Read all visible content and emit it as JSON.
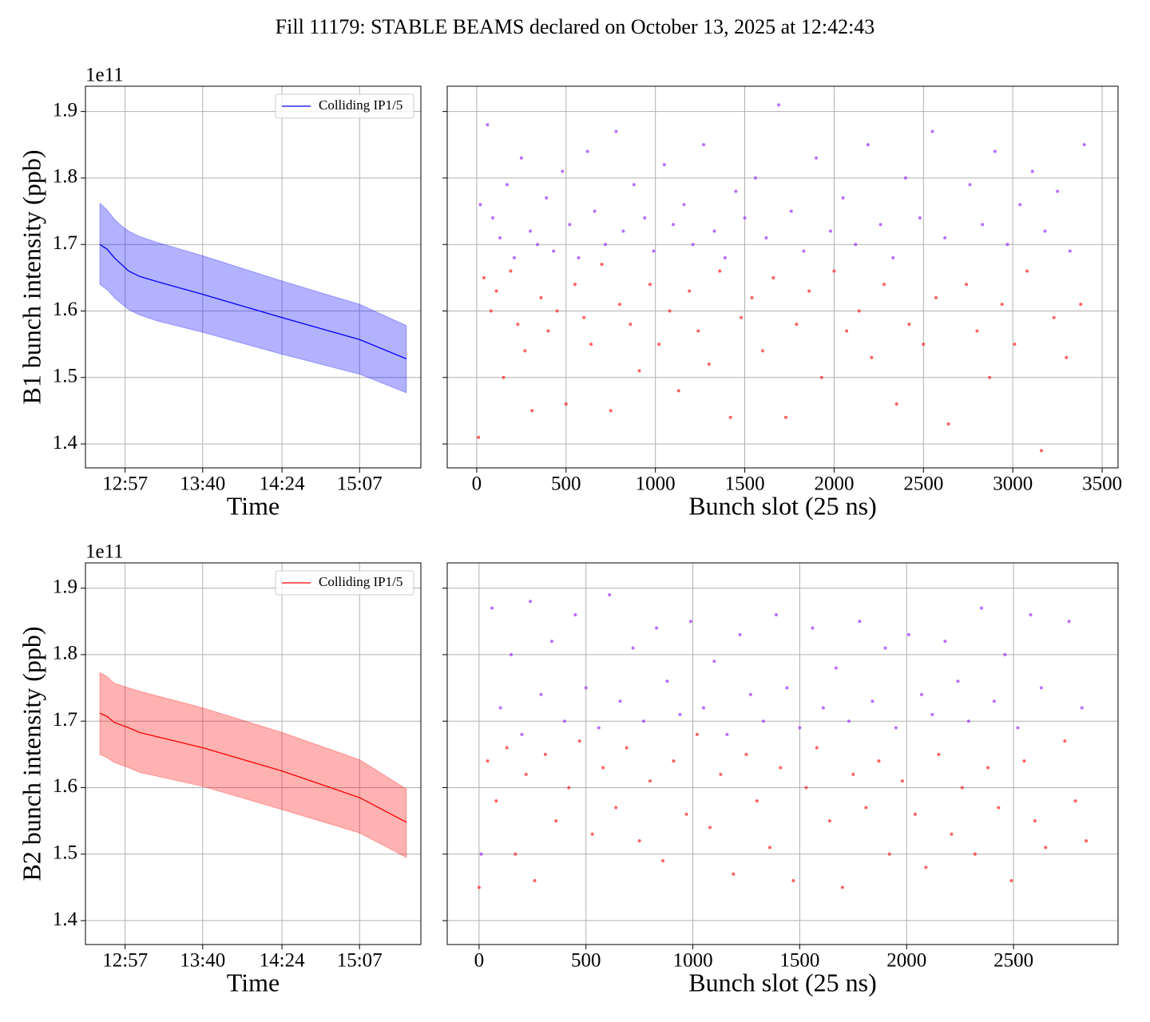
{
  "suptitle": "Fill 11179: STABLE BEAMS declared on October 13, 2025 at 12:42:43",
  "chart_data": [
    {
      "type": "line",
      "xlabel": "Time",
      "ylabel": "B1 bunch intensity (ppb)",
      "offset_label": "1e11",
      "x": [
        "12:43",
        "12:47",
        "12:51",
        "12:55",
        "12:59",
        "13:05",
        "13:15",
        "13:40",
        "14:24",
        "15:07",
        "15:33"
      ],
      "series": [
        {
          "name": "Colliding IP1/5",
          "color": "#0000ff",
          "values": [
            1.7,
            1.693,
            1.68,
            1.67,
            1.66,
            1.652,
            1.644,
            1.625,
            1.59,
            1.557,
            1.528
          ],
          "lower": [
            1.64,
            1.632,
            1.62,
            1.611,
            1.602,
            1.594,
            1.585,
            1.568,
            1.535,
            1.505,
            1.477
          ],
          "upper": [
            1.762,
            1.752,
            1.738,
            1.728,
            1.72,
            1.712,
            1.703,
            1.683,
            1.645,
            1.61,
            1.578
          ]
        }
      ],
      "xlim": [
        "12:35",
        "15:41"
      ],
      "xticks": [
        "12:57",
        "13:40",
        "14:24",
        "15:07"
      ],
      "ylim": [
        1.364,
        1.938
      ],
      "yticks": [
        1.4,
        1.5,
        1.6,
        1.7,
        1.8,
        1.9
      ],
      "grid": true,
      "legend": "upper right"
    },
    {
      "type": "scatter",
      "xlabel": "Bunch slot (25 ns)",
      "series": [
        {
          "color": "#9b30ff",
          "x": [
            20,
            60,
            90,
            130,
            170,
            210,
            250,
            300,
            340,
            390,
            430,
            480,
            520,
            570,
            620,
            660,
            720,
            780,
            820,
            880,
            940,
            990,
            1050,
            1100,
            1160,
            1210,
            1270,
            1330,
            1390,
            1450,
            1500,
            1560,
            1620,
            1690,
            1760,
            1830,
            1900,
            1980,
            2050,
            2120,
            2190,
            2260,
            2330,
            2400,
            2480,
            2550,
            2620,
            2760,
            2830,
            2900,
            2970,
            3040,
            3110,
            3180,
            3250,
            3320,
            3400
          ],
          "values": [
            1.76,
            1.88,
            1.74,
            1.71,
            1.79,
            1.68,
            1.83,
            1.72,
            1.7,
            1.77,
            1.69,
            1.81,
            1.73,
            1.68,
            1.84,
            1.75,
            1.7,
            1.87,
            1.72,
            1.79,
            1.74,
            1.69,
            1.82,
            1.73,
            1.76,
            1.7,
            1.85,
            1.72,
            1.68,
            1.78,
            1.74,
            1.8,
            1.71,
            1.91,
            1.75,
            1.69,
            1.83,
            1.72,
            1.77,
            1.7,
            1.85,
            1.73,
            1.68,
            1.8,
            1.74,
            1.87,
            1.71,
            1.79,
            1.73,
            1.84,
            1.7,
            1.76,
            1.81,
            1.72,
            1.78,
            1.69,
            1.85
          ]
        },
        {
          "color": "#ff2020",
          "x": [
            10,
            40,
            80,
            110,
            150,
            190,
            230,
            270,
            310,
            360,
            400,
            450,
            500,
            550,
            600,
            640,
            700,
            750,
            800,
            860,
            910,
            970,
            1020,
            1080,
            1130,
            1190,
            1240,
            1300,
            1360,
            1420,
            1480,
            1540,
            1600,
            1660,
            1730,
            1790,
            1860,
            1930,
            2000,
            2070,
            2140,
            2210,
            2280,
            2350,
            2420,
            2500,
            2570,
            2640,
            2740,
            2800,
            2870,
            2940,
            3010,
            3080,
            3160,
            3230,
            3300,
            3380
          ],
          "values": [
            1.41,
            1.65,
            1.6,
            1.63,
            1.5,
            1.66,
            1.58,
            1.54,
            1.45,
            1.62,
            1.57,
            1.6,
            1.46,
            1.64,
            1.59,
            1.55,
            1.67,
            1.45,
            1.61,
            1.58,
            1.51,
            1.64,
            1.55,
            1.6,
            1.48,
            1.63,
            1.57,
            1.52,
            1.66,
            1.44,
            1.59,
            1.62,
            1.54,
            1.65,
            1.44,
            1.58,
            1.63,
            1.5,
            1.66,
            1.57,
            1.6,
            1.53,
            1.64,
            1.46,
            1.58,
            1.55,
            1.62,
            1.43,
            1.64,
            1.57,
            1.5,
            1.61,
            1.55,
            1.66,
            1.39,
            1.59,
            1.53,
            1.61
          ]
        }
      ],
      "xlim": [
        -165,
        3589
      ],
      "xticks": [
        0,
        500,
        1000,
        1500,
        2000,
        2500,
        3000,
        3500
      ],
      "ylim": [
        1.364,
        1.938
      ],
      "yticks": [
        1.4,
        1.5,
        1.6,
        1.7,
        1.8,
        1.9
      ],
      "grid": true,
      "ytick_labels": false
    },
    {
      "type": "line",
      "xlabel": "Time",
      "ylabel": "B2 bunch intensity (ppb)",
      "offset_label": "1e11",
      "x": [
        "12:43",
        "12:47",
        "12:51",
        "12:59",
        "13:05",
        "13:40",
        "14:24",
        "15:07",
        "15:33"
      ],
      "series": [
        {
          "name": "Colliding IP1/5",
          "color": "#ff0000",
          "values": [
            1.712,
            1.707,
            1.698,
            1.69,
            1.683,
            1.66,
            1.625,
            1.585,
            1.548
          ],
          "lower": [
            1.65,
            1.645,
            1.638,
            1.63,
            1.623,
            1.602,
            1.567,
            1.532,
            1.495
          ],
          "upper": [
            1.773,
            1.767,
            1.757,
            1.75,
            1.745,
            1.72,
            1.683,
            1.642,
            1.598
          ]
        }
      ],
      "xlim": [
        "12:35",
        "15:41"
      ],
      "xticks": [
        "12:57",
        "13:40",
        "14:24",
        "15:07"
      ],
      "ylim": [
        1.364,
        1.938
      ],
      "yticks": [
        1.4,
        1.5,
        1.6,
        1.7,
        1.8,
        1.9
      ],
      "grid": true,
      "legend": "upper right"
    },
    {
      "type": "scatter",
      "xlabel": "Bunch slot (25 ns)",
      "series": [
        {
          "color": "#9b30ff",
          "x": [
            10,
            60,
            100,
            150,
            200,
            240,
            290,
            340,
            400,
            450,
            500,
            560,
            610,
            660,
            720,
            770,
            830,
            880,
            940,
            990,
            1050,
            1100,
            1160,
            1220,
            1270,
            1330,
            1390,
            1440,
            1500,
            1560,
            1610,
            1670,
            1730,
            1780,
            1840,
            1900,
            1950,
            2010,
            2070,
            2120,
            2180,
            2240,
            2290,
            2350,
            2410,
            2460,
            2520,
            2580,
            2630,
            2760,
            2820
          ],
          "values": [
            1.5,
            1.87,
            1.72,
            1.8,
            1.68,
            1.88,
            1.74,
            1.82,
            1.7,
            1.86,
            1.75,
            1.69,
            1.89,
            1.73,
            1.81,
            1.7,
            1.84,
            1.76,
            1.71,
            1.85,
            1.72,
            1.79,
            1.68,
            1.83,
            1.74,
            1.7,
            1.86,
            1.75,
            1.69,
            1.84,
            1.72,
            1.78,
            1.7,
            1.85,
            1.73,
            1.81,
            1.69,
            1.83,
            1.74,
            1.71,
            1.82,
            1.76,
            1.7,
            1.87,
            1.73,
            1.8,
            1.69,
            1.86,
            1.75,
            1.85,
            1.72
          ]
        },
        {
          "color": "#ff2020",
          "x": [
            0,
            40,
            80,
            130,
            170,
            220,
            260,
            310,
            360,
            420,
            470,
            530,
            580,
            640,
            690,
            750,
            800,
            860,
            910,
            970,
            1020,
            1080,
            1130,
            1190,
            1250,
            1300,
            1360,
            1410,
            1470,
            1530,
            1580,
            1640,
            1700,
            1750,
            1810,
            1870,
            1920,
            1980,
            2040,
            2090,
            2150,
            2210,
            2260,
            2320,
            2380,
            2430,
            2490,
            2550,
            2600,
            2650,
            2740,
            2790,
            2840
          ],
          "values": [
            1.45,
            1.64,
            1.58,
            1.66,
            1.5,
            1.62,
            1.46,
            1.65,
            1.55,
            1.6,
            1.67,
            1.53,
            1.63,
            1.57,
            1.66,
            1.52,
            1.61,
            1.49,
            1.64,
            1.56,
            1.68,
            1.54,
            1.62,
            1.47,
            1.65,
            1.58,
            1.51,
            1.63,
            1.46,
            1.6,
            1.66,
            1.55,
            1.45,
            1.62,
            1.57,
            1.64,
            1.5,
            1.61,
            1.56,
            1.48,
            1.65,
            1.53,
            1.6,
            1.5,
            1.63,
            1.57,
            1.46,
            1.64,
            1.55,
            1.51,
            1.67,
            1.58,
            1.52
          ]
        }
      ],
      "xlim": [
        -149,
        2989
      ],
      "xticks": [
        0,
        500,
        1000,
        1500,
        2000,
        2500
      ],
      "ylim": [
        1.364,
        1.938
      ],
      "yticks": [
        1.4,
        1.5,
        1.6,
        1.7,
        1.8,
        1.9
      ],
      "grid": true,
      "ytick_labels": false
    }
  ]
}
